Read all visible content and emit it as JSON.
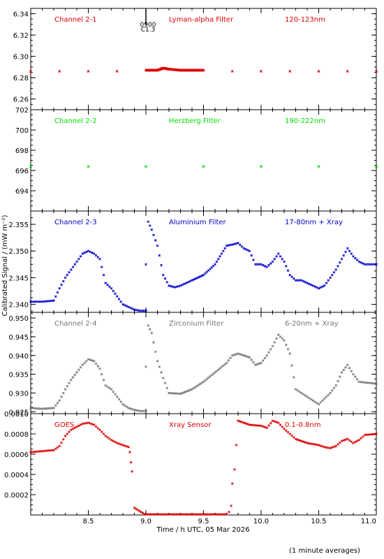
{
  "figure": {
    "ylabel": "Calibrated Signal / (mW m⁻²)",
    "xlabel": "Time / h UTC, 05 Mar 2026",
    "footnote": "(1 minute averages)",
    "flare_marker": {
      "top": "0900",
      "bottom": "C1.3"
    }
  },
  "colors": {
    "red": "#dd0000",
    "green": "#00dd00",
    "blue": "#0000cc",
    "gray": "#777777",
    "axis": "#000000"
  },
  "chart_data": [
    {
      "type": "scatter",
      "panel": "channel-2-1",
      "labels": [
        "Channel 2-1",
        "Lyman-alpha Filter",
        "120-123nm"
      ],
      "color": "#dd0000",
      "xlim": [
        8.0,
        11.0
      ],
      "ylim": [
        6.25,
        6.345
      ],
      "yticks": [
        6.26,
        6.28,
        6.3,
        6.32,
        6.34
      ],
      "ytick_labels": [
        "6.26",
        "6.28",
        "6.30",
        "6.32",
        "6.34"
      ],
      "x": [
        8.0,
        8.25,
        8.5,
        8.75,
        9.0,
        9.1,
        9.15,
        9.2,
        9.3,
        9.5,
        9.75,
        10.0,
        10.25,
        10.5,
        10.75,
        11.0
      ],
      "y": [
        6.286,
        6.286,
        6.286,
        6.286,
        6.287,
        6.287,
        6.289,
        6.288,
        6.287,
        6.287,
        6.286,
        6.286,
        6.286,
        6.286,
        6.286,
        6.286
      ]
    },
    {
      "type": "scatter",
      "panel": "channel-2-2",
      "labels": [
        "Channel 2-2",
        "Herzberg Filter",
        "190-222nm"
      ],
      "color": "#00dd00",
      "xlim": [
        8.0,
        11.0
      ],
      "ylim": [
        692.0,
        702.0
      ],
      "yticks": [
        694,
        696,
        698,
        700,
        702
      ],
      "ytick_labels": [
        "694",
        "696",
        "698",
        "700",
        "702"
      ],
      "x": [
        8.0,
        8.5,
        9.0,
        9.5,
        10.0,
        10.5,
        11.0
      ],
      "y": [
        696.4,
        696.4,
        696.4,
        696.4,
        696.4,
        696.4,
        696.4
      ]
    },
    {
      "type": "scatter",
      "panel": "channel-2-3",
      "labels": [
        "Channel 2-3",
        "Aluminium Filter",
        "17-80nm + Xray"
      ],
      "color": "#0000cc",
      "xlim": [
        8.0,
        11.0
      ],
      "ylim": [
        2.3385,
        2.3575
      ],
      "yticks": [
        2.34,
        2.345,
        2.35,
        2.355
      ],
      "ytick_labels": [
        "2.340",
        "2.345",
        "2.350",
        "2.355"
      ],
      "x": [
        8.0,
        8.1,
        8.2,
        8.25,
        8.3,
        8.35,
        8.4,
        8.45,
        8.5,
        8.55,
        8.6,
        8.65,
        8.7,
        8.75,
        8.8,
        8.85,
        8.9,
        8.95,
        9.0,
        9.0,
        9.02,
        9.05,
        9.1,
        9.15,
        9.2,
        9.25,
        9.3,
        9.35,
        9.4,
        9.5,
        9.6,
        9.7,
        9.75,
        9.8,
        9.85,
        9.9,
        9.95,
        10.0,
        10.05,
        10.1,
        10.15,
        10.2,
        10.25,
        10.3,
        10.35,
        10.4,
        10.45,
        10.5,
        10.55,
        10.6,
        10.65,
        10.7,
        10.75,
        10.8,
        10.85,
        10.9,
        10.95,
        11.0
      ],
      "y": [
        2.3405,
        2.3405,
        2.3407,
        2.343,
        2.345,
        2.3465,
        2.348,
        2.3495,
        2.35,
        2.3495,
        2.3485,
        2.344,
        2.343,
        2.3415,
        2.34,
        2.3395,
        2.339,
        2.3388,
        2.3388,
        2.3475,
        2.3555,
        2.354,
        2.351,
        2.3455,
        2.3435,
        2.3432,
        2.3435,
        2.344,
        2.3445,
        2.3455,
        2.3475,
        2.351,
        2.3512,
        2.3515,
        2.3505,
        2.35,
        2.3475,
        2.3475,
        2.347,
        2.348,
        2.3495,
        2.348,
        2.3455,
        2.3445,
        2.3445,
        2.344,
        2.3435,
        2.343,
        2.3435,
        2.345,
        2.3465,
        2.3485,
        2.3505,
        2.349,
        2.348,
        2.3475,
        2.3475,
        2.3475
      ]
    },
    {
      "type": "scatter",
      "panel": "channel-2-4",
      "labels": [
        "Channel 2-4",
        "Zirconium Filter",
        "6-20nm + Xray"
      ],
      "color": "#777777",
      "xlim": [
        8.0,
        11.0
      ],
      "ylim": [
        0.9245,
        0.9515
      ],
      "yticks": [
        0.925,
        0.93,
        0.935,
        0.94,
        0.945,
        0.95
      ],
      "ytick_labels": [
        "0.925",
        "0.930",
        "0.935",
        "0.940",
        "0.945",
        "0.950"
      ],
      "x": [
        8.0,
        8.1,
        8.2,
        8.25,
        8.3,
        8.35,
        8.4,
        8.45,
        8.5,
        8.55,
        8.6,
        8.65,
        8.7,
        8.75,
        8.8,
        8.85,
        8.9,
        8.95,
        9.0,
        9.0,
        9.02,
        9.05,
        9.1,
        9.15,
        9.2,
        9.3,
        9.4,
        9.5,
        9.6,
        9.7,
        9.75,
        9.8,
        9.85,
        9.9,
        9.95,
        10.0,
        10.05,
        10.1,
        10.15,
        10.2,
        10.25,
        10.3,
        10.35,
        10.4,
        10.45,
        10.5,
        10.55,
        10.6,
        10.65,
        10.7,
        10.75,
        10.8,
        10.85,
        10.9,
        11.0
      ],
      "y": [
        0.926,
        0.9258,
        0.926,
        0.928,
        0.931,
        0.9335,
        0.9355,
        0.9375,
        0.939,
        0.9385,
        0.9365,
        0.932,
        0.931,
        0.929,
        0.927,
        0.926,
        0.9255,
        0.9252,
        0.9252,
        0.937,
        0.948,
        0.946,
        0.9385,
        0.934,
        0.93,
        0.9298,
        0.931,
        0.933,
        0.9355,
        0.938,
        0.94,
        0.9405,
        0.94,
        0.9395,
        0.9375,
        0.938,
        0.94,
        0.9425,
        0.9455,
        0.944,
        0.9405,
        0.931,
        0.93,
        0.929,
        0.928,
        0.927,
        0.9285,
        0.93,
        0.932,
        0.9355,
        0.9375,
        0.935,
        0.933,
        0.9328,
        0.9325
      ]
    },
    {
      "type": "scatter",
      "panel": "goes",
      "labels": [
        "GOES",
        "Xray Sensor",
        "0.1-0.8nm"
      ],
      "color": "#dd0000",
      "xlim": [
        8.0,
        11.0
      ],
      "ylim": [
        0.0,
        0.001
      ],
      "yticks": [
        0.0002,
        0.0004,
        0.0006,
        0.0008,
        0.001
      ],
      "ytick_labels": [
        "0.0002",
        "0.0004",
        "0.0006",
        "0.0008",
        "0.0010"
      ],
      "x": [
        8.0,
        8.1,
        8.2,
        8.25,
        8.3,
        8.35,
        8.4,
        8.45,
        8.5,
        8.55,
        8.6,
        8.65,
        8.7,
        8.75,
        8.8,
        8.85,
        8.86,
        8.87,
        8.88,
        8.9,
        9.0,
        9.2,
        9.4,
        9.6,
        9.7,
        9.72,
        9.74,
        9.75,
        9.77,
        9.8,
        9.9,
        10.0,
        10.05,
        10.1,
        10.15,
        10.2,
        10.25,
        10.3,
        10.4,
        10.5,
        10.55,
        10.6,
        10.65,
        10.7,
        10.75,
        10.8,
        10.85,
        10.9,
        11.0
      ],
      "y": [
        0.00062,
        0.00063,
        0.00064,
        0.00068,
        0.00078,
        0.00084,
        0.00087,
        0.0009,
        0.00091,
        0.00089,
        0.00084,
        0.00078,
        0.00074,
        0.00071,
        0.00069,
        0.00067,
        0.00062,
        0.00052,
        0.00043,
        7e-05,
        0.0,
        0.0,
        0.0,
        0.0,
        0.0,
        3e-05,
        9e-05,
        0.00031,
        0.00045,
        0.00093,
        0.00089,
        0.00088,
        0.00086,
        0.00093,
        0.00091,
        0.00085,
        0.0008,
        0.00075,
        0.00071,
        0.00069,
        0.00067,
        0.00066,
        0.00068,
        0.00073,
        0.00075,
        0.00071,
        0.00074,
        0.00079,
        0.0008
      ]
    }
  ]
}
